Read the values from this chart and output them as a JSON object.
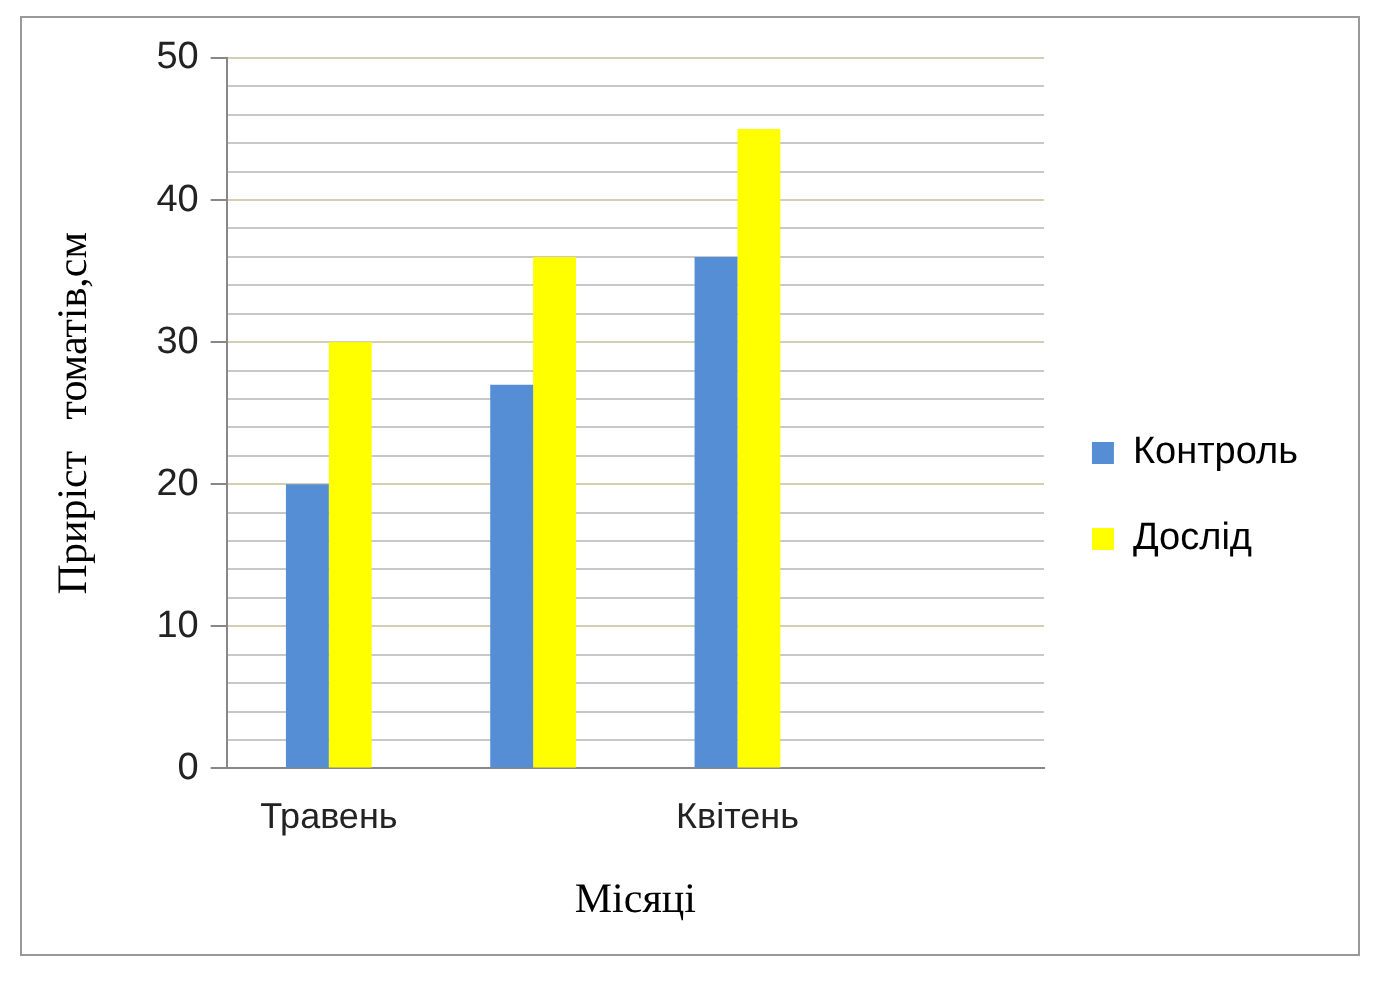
{
  "chart_data": {
    "type": "bar",
    "xlabel": "Місяці",
    "ylabel": "Приріст   томатів,см",
    "categories": [
      "Травень",
      null,
      "Квітень",
      null
    ],
    "series": [
      {
        "name": "Контроль",
        "color": "#558ed5",
        "values": [
          20,
          27,
          36,
          null
        ]
      },
      {
        "name": "Дослід",
        "color": "#ffff00",
        "values": [
          30,
          36,
          45,
          null
        ]
      }
    ],
    "ylim": [
      0,
      50
    ],
    "yticks": [
      0,
      {
        "value": 2,
        "label": null
      },
      {
        "value": 4,
        "label": null
      },
      {
        "value": 6,
        "label": null
      },
      {
        "value": 8,
        "label": null
      },
      10,
      {
        "value": 12,
        "label": null
      },
      {
        "value": 14,
        "label": null
      },
      {
        "value": 16,
        "label": null
      },
      {
        "value": 18,
        "label": null
      },
      20,
      {
        "value": 22,
        "label": null
      },
      {
        "value": 24,
        "label": null
      },
      {
        "value": 26,
        "label": null
      },
      {
        "value": 28,
        "label": null
      },
      30,
      {
        "value": 32,
        "label": null
      },
      {
        "value": 34,
        "label": null
      },
      {
        "value": 36,
        "label": null
      },
      {
        "value": 38,
        "label": null
      },
      40,
      {
        "value": 42,
        "label": null
      },
      {
        "value": 44,
        "label": null
      },
      {
        "value": 46,
        "label": null
      },
      {
        "value": 48,
        "label": null
      },
      50
    ],
    "grid": "y",
    "legend": "right"
  }
}
